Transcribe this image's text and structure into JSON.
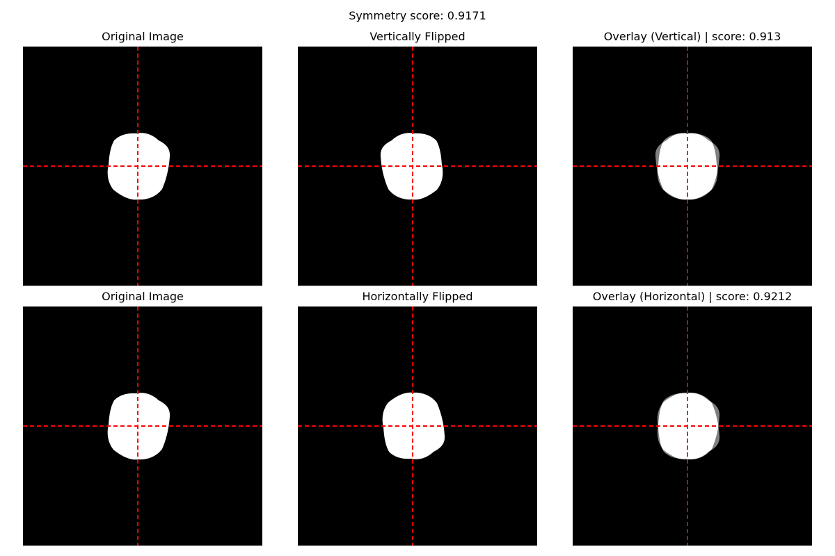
{
  "figure": {
    "suptitle": "Symmetry score: 0.9171",
    "panels": [
      {
        "title": "Original Image",
        "content": "original"
      },
      {
        "title": "Vertically Flipped",
        "content": "mirrored-left-right"
      },
      {
        "title": "Overlay (Vertical) | score: 0.913",
        "content": "overlay-vertical"
      },
      {
        "title": "Original Image",
        "content": "original"
      },
      {
        "title": "Horizontally Flipped",
        "content": "mirrored-top-bottom"
      },
      {
        "title": "Overlay (Horizontal) | score: 0.9212",
        "content": "overlay-horizontal"
      }
    ]
  },
  "scores": {
    "overall": 0.9171,
    "vertical": 0.913,
    "horizontal": 0.9212
  },
  "colors": {
    "background": "#000000",
    "shape": "#ffffff",
    "overlay_gray": "#808080",
    "axis_line": "#ff0000"
  }
}
